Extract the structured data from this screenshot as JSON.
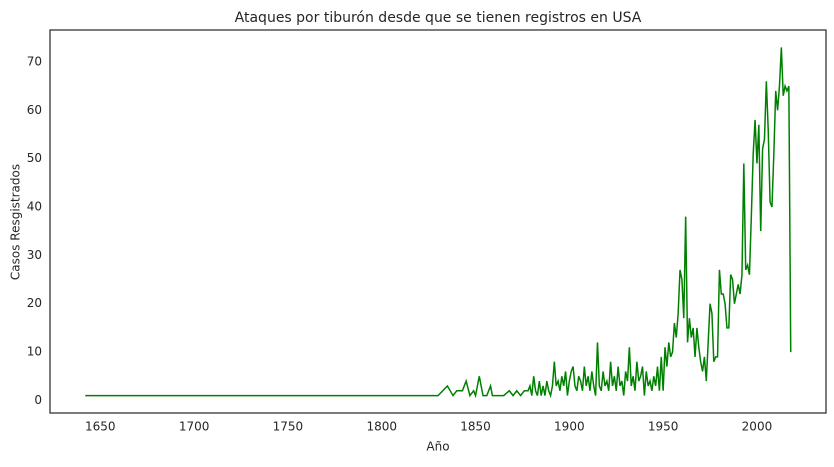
{
  "chart_data": {
    "type": "line",
    "title": "Ataques por tiburón desde que se tienen registros en USA",
    "xlabel": "Año",
    "ylabel": "Casos Resgistrados",
    "color": "#008000",
    "grid": false,
    "x": [
      1642,
      1830,
      1835,
      1838,
      1840,
      1843,
      1845,
      1847,
      1849,
      1850,
      1852,
      1854,
      1856,
      1858,
      1859,
      1862,
      1865,
      1868,
      1870,
      1872,
      1874,
      1876,
      1878,
      1879,
      1880,
      1881,
      1882,
      1883,
      1884,
      1885,
      1886,
      1887,
      1888,
      1889,
      1890,
      1891,
      1892,
      1893,
      1894,
      1895,
      1896,
      1897,
      1898,
      1899,
      1900,
      1901,
      1902,
      1903,
      1904,
      1905,
      1906,
      1907,
      1908,
      1909,
      1910,
      1911,
      1912,
      1913,
      1914,
      1915,
      1916,
      1917,
      1918,
      1919,
      1920,
      1921,
      1922,
      1923,
      1924,
      1925,
      1926,
      1927,
      1928,
      1929,
      1930,
      1931,
      1932,
      1933,
      1934,
      1935,
      1936,
      1937,
      1938,
      1939,
      1940,
      1941,
      1942,
      1943,
      1944,
      1945,
      1946,
      1947,
      1948,
      1949,
      1950,
      1951,
      1952,
      1953,
      1954,
      1955,
      1956,
      1957,
      1958,
      1959,
      1960,
      1961,
      1962,
      1963,
      1964,
      1965,
      1966,
      1967,
      1968,
      1969,
      1970,
      1971,
      1972,
      1973,
      1974,
      1975,
      1976,
      1977,
      1978,
      1979,
      1980,
      1981,
      1982,
      1983,
      1984,
      1985,
      1986,
      1987,
      1988,
      1989,
      1990,
      1991,
      1992,
      1993,
      1994,
      1995,
      1996,
      1997,
      1998,
      1999,
      2000,
      2001,
      2002,
      2003,
      2004,
      2005,
      2006,
      2007,
      2008,
      2009,
      2010,
      2011,
      2012,
      2013,
      2014,
      2015,
      2016,
      2017,
      2018
    ],
    "values": [
      1,
      1,
      3,
      1,
      2,
      2,
      4,
      1,
      2,
      1,
      5,
      1,
      1,
      3,
      1,
      1,
      1,
      2,
      1,
      2,
      1,
      2,
      2,
      3,
      1,
      5,
      2,
      1,
      4,
      1,
      3,
      1,
      4,
      2,
      1,
      3,
      8,
      3,
      4,
      2,
      5,
      3,
      6,
      1,
      4,
      6,
      7,
      3,
      2,
      5,
      4,
      2,
      7,
      3,
      5,
      2,
      6,
      3,
      1,
      12,
      3,
      2,
      6,
      3,
      4,
      2,
      8,
      3,
      5,
      2,
      7,
      3,
      4,
      1,
      6,
      4,
      11,
      3,
      5,
      2,
      8,
      4,
      5,
      7,
      1,
      6,
      3,
      4,
      2,
      5,
      3,
      7,
      2,
      9,
      2,
      11,
      7,
      12,
      9,
      10,
      16,
      13,
      18,
      27,
      25,
      17,
      38,
      12,
      17,
      13,
      15,
      9,
      15,
      11,
      8,
      6,
      9,
      4,
      12,
      20,
      18,
      8,
      9,
      9,
      27,
      22,
      22,
      20,
      15,
      15,
      26,
      25,
      20,
      22,
      24,
      22,
      26,
      49,
      27,
      28,
      26,
      38,
      51,
      58,
      49,
      57,
      35,
      52,
      54,
      66,
      56,
      41,
      40,
      51,
      64,
      60,
      65,
      73,
      63,
      65,
      64,
      65,
      10
    ],
    "xlim": [
      1623.2,
      2036.8
    ],
    "ylim": [
      -2.6,
      76.6
    ],
    "xticks": [
      1650,
      1700,
      1750,
      1800,
      1850,
      1900,
      1950,
      2000
    ],
    "yticks": [
      0,
      10,
      20,
      30,
      40,
      50,
      60,
      70
    ]
  }
}
